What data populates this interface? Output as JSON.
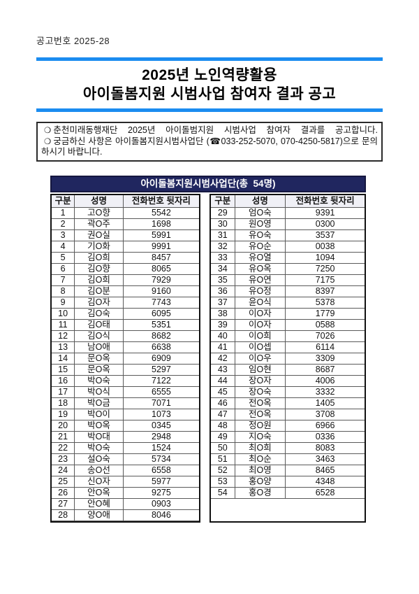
{
  "page": {
    "doc_number": "공고번호 2025-28",
    "title_line1": "2025년 노인역량활용",
    "title_line2": "아이돌봄지원 시범사업 참여자 결과 공고"
  },
  "notice": {
    "bullet": "❍",
    "line1": "춘천미래동행재단 2025년 아이돌범지원 시범사업 참여자 결과를 공고합니다.",
    "line2": "궁금하신 사항은 아이돌봄지원시범사업단 (☎033-252-5070, 070-4250-5817)으로 문의하시기 바랍니다."
  },
  "table": {
    "title": "아이돌봄지원시범사업단(총  54명)",
    "columns": [
      "구분",
      "성명",
      "전화번호 뒷자리"
    ],
    "left_rows": [
      [
        "1",
        "고O향",
        "5542"
      ],
      [
        "2",
        "곽O주",
        "1698"
      ],
      [
        "3",
        "권O실",
        "5991"
      ],
      [
        "4",
        "기O화",
        "9991"
      ],
      [
        "5",
        "김O희",
        "8457"
      ],
      [
        "6",
        "김O향",
        "8065"
      ],
      [
        "7",
        "김O희",
        "7929"
      ],
      [
        "8",
        "김O분",
        "9160"
      ],
      [
        "9",
        "김O자",
        "7743"
      ],
      [
        "10",
        "김O숙",
        "6095"
      ],
      [
        "11",
        "김O태",
        "5351"
      ],
      [
        "12",
        "김O식",
        "8682"
      ],
      [
        "13",
        "남O애",
        "6638"
      ],
      [
        "14",
        "문O옥",
        "6909"
      ],
      [
        "15",
        "문O옥",
        "5297"
      ],
      [
        "16",
        "박O숙",
        "7122"
      ],
      [
        "17",
        "박O식",
        "6555"
      ],
      [
        "18",
        "박O금",
        "7071"
      ],
      [
        "19",
        "박O이",
        "1073"
      ],
      [
        "20",
        "박O옥",
        "0345"
      ],
      [
        "21",
        "박O대",
        "2948"
      ],
      [
        "22",
        "박O숙",
        "1524"
      ],
      [
        "23",
        "설O숙",
        "5734"
      ],
      [
        "24",
        "송O선",
        "6558"
      ],
      [
        "25",
        "신O자",
        "5977"
      ],
      [
        "26",
        "안O옥",
        "9275"
      ],
      [
        "27",
        "안O혜",
        "0903"
      ],
      [
        "28",
        "양O애",
        "8046"
      ]
    ],
    "right_rows": [
      [
        "29",
        "엄O숙",
        "9391"
      ],
      [
        "30",
        "원O영",
        "0300"
      ],
      [
        "31",
        "유O숙",
        "3537"
      ],
      [
        "32",
        "유O순",
        "0038"
      ],
      [
        "33",
        "유O열",
        "1094"
      ],
      [
        "34",
        "유O옥",
        "7250"
      ],
      [
        "35",
        "유O연",
        "7175"
      ],
      [
        "36",
        "유O정",
        "8397"
      ],
      [
        "37",
        "윤O식",
        "5378"
      ],
      [
        "38",
        "이O자",
        "1779"
      ],
      [
        "39",
        "이O자",
        "0588"
      ],
      [
        "40",
        "이O희",
        "7026"
      ],
      [
        "41",
        "이O셉",
        "6114"
      ],
      [
        "42",
        "이O우",
        "3309"
      ],
      [
        "43",
        "임O현",
        "8687"
      ],
      [
        "44",
        "장O자",
        "4006"
      ],
      [
        "45",
        "장O숙",
        "3332"
      ],
      [
        "46",
        "전O옥",
        "1405"
      ],
      [
        "47",
        "전O옥",
        "3708"
      ],
      [
        "48",
        "정O원",
        "6966"
      ],
      [
        "49",
        "지O숙",
        "0336"
      ],
      [
        "50",
        "최O희",
        "8083"
      ],
      [
        "51",
        "최O순",
        "3463"
      ],
      [
        "52",
        "최O영",
        "8465"
      ],
      [
        "53",
        "홍O양",
        "4348"
      ],
      [
        "54",
        "홍O경",
        "6528"
      ]
    ]
  },
  "colors": {
    "accent_blue": "#1b8cf0",
    "header_navy": "#20265f",
    "header_cell_bg": "#f0f0f6"
  }
}
